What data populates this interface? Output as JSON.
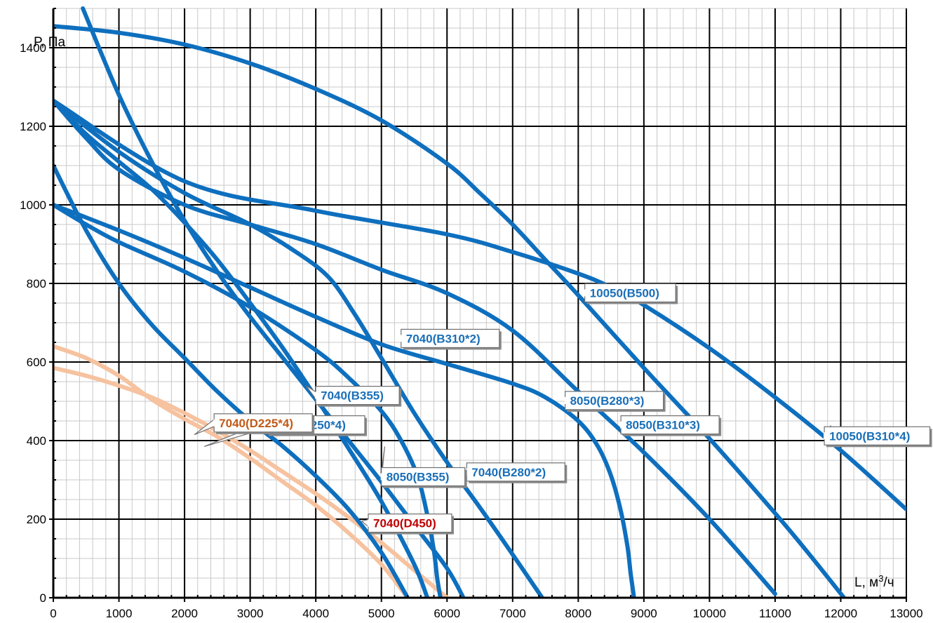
{
  "chart_data": {
    "type": "line",
    "title": "",
    "xlabel": "L, м³/ч",
    "ylabel": "P, Па",
    "xlim": [
      0,
      13000
    ],
    "ylim": [
      0,
      1500
    ],
    "grid": true,
    "x_ticks": [
      "0",
      "1000",
      "2000",
      "3000",
      "4000",
      "5000",
      "6000",
      "7000",
      "8000",
      "9000",
      "10000",
      "11000",
      "12000",
      "13000"
    ],
    "y_ticks": [
      "0",
      "200",
      "400",
      "600",
      "800",
      "1000",
      "1200",
      "1400"
    ],
    "colors": {
      "blue": "#0e6fbe",
      "peach": "#f6c29f",
      "orange_text": "#c05a18",
      "red_text": "#c00000",
      "blue_text": "#1a6fb8"
    },
    "series": [
      {
        "name": "10050(B500)",
        "color": "blue",
        "label_color": "blue_text",
        "x": [
          0,
          1000,
          2000,
          3000,
          4000,
          5000,
          6000,
          6500,
          7000,
          7500,
          8000,
          9000,
          10000,
          11000,
          11500,
          12050
        ],
        "y": [
          1455,
          1438,
          1408,
          1360,
          1295,
          1215,
          1105,
          1030,
          950,
          860,
          770,
          585,
          405,
          215,
          115,
          0
        ]
      },
      {
        "name": "10050(B310*4)",
        "color": "blue",
        "label_color": "blue_text",
        "x": [
          0,
          2000,
          4000,
          6000,
          7000,
          8000,
          8500,
          9000,
          10000,
          11000,
          12000,
          13000
        ],
        "y": [
          1265,
          1060,
          985,
          925,
          880,
          825,
          790,
          745,
          635,
          510,
          375,
          225
        ]
      },
      {
        "name": "8050(B310*3)",
        "color": "blue",
        "label_color": "blue_text",
        "x": [
          0,
          500,
          1000,
          2000,
          3000,
          4000,
          5000,
          6000,
          7000,
          8000,
          9000,
          10000,
          11000
        ],
        "y": [
          1265,
          1170,
          1090,
          1000,
          950,
          900,
          835,
          775,
          680,
          525,
          370,
          200,
          10
        ]
      },
      {
        "name": "8050(B280*3)",
        "color": "blue",
        "label_color": "blue_text",
        "x": [
          0,
          1000,
          2000,
          3000,
          4000,
          5000,
          6000,
          7000,
          7500,
          8000,
          8300,
          8500,
          8650,
          8750,
          8800,
          8850
        ],
        "y": [
          1000,
          935,
          865,
          790,
          715,
          645,
          595,
          545,
          510,
          450,
          385,
          310,
          220,
          130,
          60,
          0
        ]
      },
      {
        "name": "7040(B310*2)",
        "color": "blue",
        "label_color": "blue_text",
        "x": [
          0,
          1000,
          2000,
          3000,
          3700,
          4200,
          4600,
          5000,
          5500,
          6000,
          6500,
          7000,
          7450
        ],
        "y": [
          1265,
          1135,
          1030,
          950,
          880,
          815,
          720,
          610,
          470,
          345,
          230,
          110,
          0
        ]
      },
      {
        "name": "7040(B280*2)",
        "color": "blue",
        "label_color": "blue_text",
        "x": [
          0,
          500,
          1000,
          2000,
          3000,
          4000,
          4500,
          5000,
          5300,
          5550,
          5700,
          5800,
          5850,
          5900
        ],
        "y": [
          1000,
          950,
          905,
          830,
          740,
          630,
          560,
          475,
          400,
          310,
          210,
          120,
          50,
          0
        ]
      },
      {
        "name": "7040(B355)",
        "color": "blue",
        "label_color": "blue_text",
        "x": [
          450,
          1000,
          1500,
          2000,
          2500,
          3000,
          3500,
          4000,
          4500,
          5000,
          5500,
          6000,
          6250
        ],
        "y": [
          1500,
          1280,
          1110,
          960,
          830,
          715,
          610,
          505,
          400,
          295,
          185,
          75,
          0
        ]
      },
      {
        "name": "8050(B355)",
        "color": "blue",
        "label_color": "blue_text",
        "x": [
          0,
          500,
          1000,
          1500,
          2000,
          2500,
          3000,
          3500,
          4000,
          4500,
          5000,
          5500,
          5700
        ],
        "y": [
          1265,
          1180,
          1110,
          1040,
          955,
          860,
          750,
          635,
          510,
          380,
          245,
          85,
          0
        ]
      },
      {
        "name": "7040(B250*4)",
        "color": "blue",
        "label_color": "blue_text",
        "x": [
          0,
          500,
          1000,
          1500,
          2000,
          2500,
          3000,
          3500,
          4000,
          4500,
          5000,
          5400
        ],
        "y": [
          1100,
          935,
          800,
          695,
          610,
          525,
          450,
          385,
          310,
          225,
          115,
          0
        ]
      },
      {
        "name": "7040(D225*4)",
        "color": "peach",
        "label_color": "orange_text",
        "x": [
          0,
          500,
          1000,
          1500,
          2000,
          2500,
          3000,
          3500,
          4000,
          4500,
          5000,
          5400
        ],
        "y": [
          640,
          610,
          565,
          505,
          455,
          410,
          355,
          295,
          235,
          165,
          85,
          0
        ]
      },
      {
        "name": "7040(D450)",
        "color": "peach",
        "label_color": "red_text",
        "x": [
          0,
          500,
          1000,
          1500,
          2000,
          2500,
          3000,
          3500,
          4000,
          4500,
          5000,
          5500,
          6000
        ],
        "y": [
          585,
          565,
          540,
          510,
          470,
          425,
          375,
          320,
          265,
          205,
          140,
          70,
          0
        ]
      }
    ],
    "annotations": [
      {
        "text": "10050(B500)",
        "series": "10050(B500)",
        "x": 8400,
        "y": 778,
        "box_x": 8100,
        "box_y": 776
      },
      {
        "text": "10050(B310*4)",
        "series": "10050(B310*4)",
        "x": 11850,
        "y": 438,
        "box_x": 11750,
        "box_y": 412
      },
      {
        "text": "8050(B310*3)",
        "series": "8050(B310*3)",
        "x": 8950,
        "y": 430,
        "box_x": 8650,
        "box_y": 440
      },
      {
        "text": "8050(B280*3)",
        "series": "8050(B280*3)",
        "x": 7950,
        "y": 510,
        "box_x": 7800,
        "box_y": 502
      },
      {
        "text": "7040(B310*2)",
        "series": "7040(B310*2)",
        "x": 5550,
        "y": 650,
        "box_x": 5300,
        "box_y": 660
      },
      {
        "text": "7040(B280*2)",
        "series": "7040(B280*2)",
        "x": 6500,
        "y": 305,
        "box_x": 6300,
        "box_y": 320
      },
      {
        "text": "7040(B355)",
        "series": "7040(B355)",
        "x": 3850,
        "y": 540,
        "box_x": 4000,
        "box_y": 515
      },
      {
        "text": "8050(B355)",
        "series": "8050(B355)",
        "x": 5050,
        "y": 385,
        "box_x": 5000,
        "box_y": 308
      },
      {
        "text": "7040(B250*4)",
        "series": "7040(B250*4)",
        "x": 2300,
        "y": 385,
        "box_x": 3250,
        "box_y": 440
      },
      {
        "text": "7040(D225*4)",
        "series": "7040(D225*4)",
        "x": 2150,
        "y": 415,
        "box_x": 2450,
        "box_y": 445
      },
      {
        "text": "7040(D450)",
        "series": "7040(D450)",
        "x": 4700,
        "y": 195,
        "box_x": 4800,
        "box_y": 190
      }
    ]
  }
}
